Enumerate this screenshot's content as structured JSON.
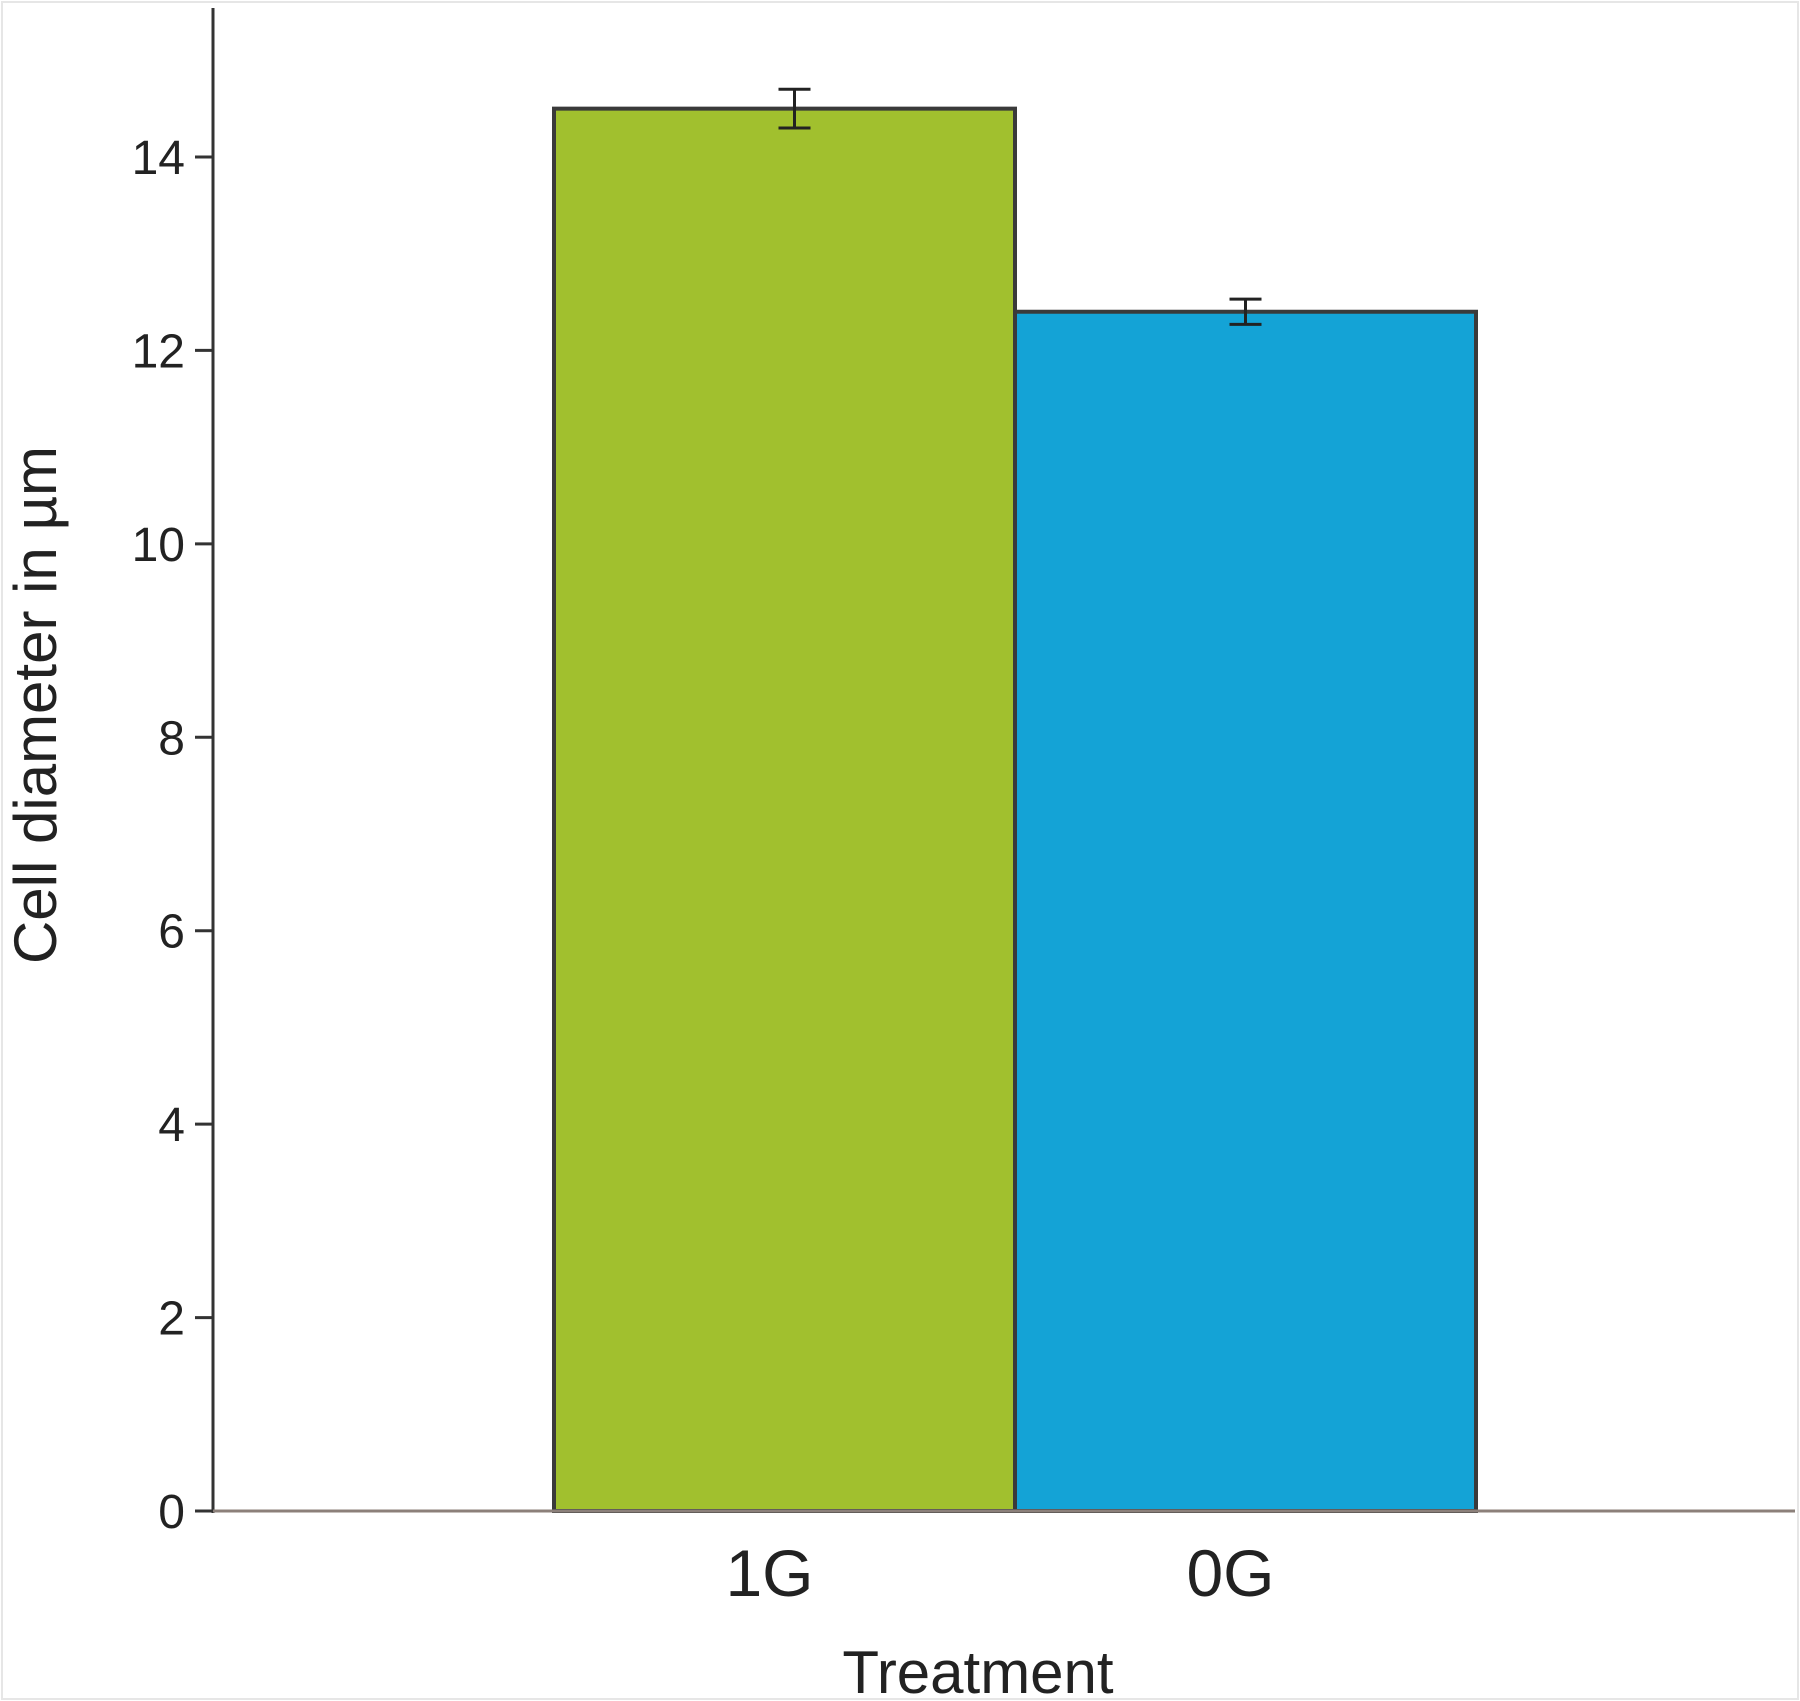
{
  "chart_data": {
    "type": "bar",
    "title": "",
    "xlabel": "Treatment",
    "ylabel": "Cell diameter in µm",
    "categories": [
      "1G",
      "0G"
    ],
    "values": [
      14.5,
      12.4
    ],
    "errors": [
      0.2,
      0.13
    ],
    "colors": [
      "#a1c02e",
      "#14a3d6"
    ],
    "ylim": [
      0,
      15.5
    ],
    "yticks": [
      0,
      2,
      4,
      6,
      8,
      10,
      12,
      14
    ],
    "grid": false,
    "legend": "none"
  }
}
